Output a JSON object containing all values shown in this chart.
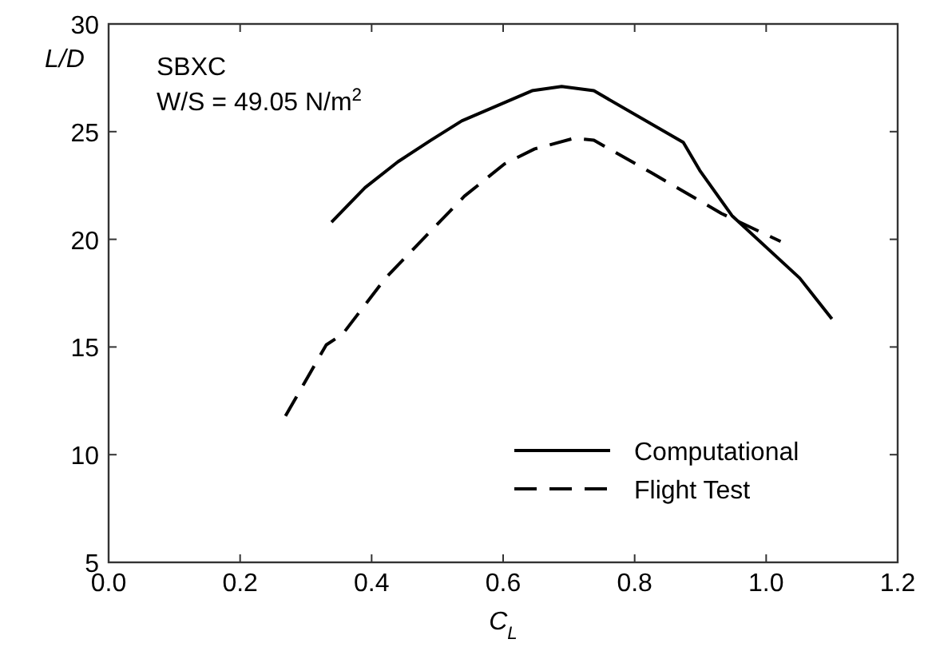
{
  "chart_data": {
    "type": "line",
    "xlabel": "C$_{L}$",
    "ylabel": "L/D",
    "xlim": [
      0,
      1.2
    ],
    "ylim": [
      5,
      30
    ],
    "xticks": [
      {
        "value": 0,
        "label": "0.0"
      },
      0.2,
      0.4,
      0.6,
      0.8,
      {
        "value": 1,
        "label": "1.0"
      },
      1.2
    ],
    "yticks": [
      5,
      10,
      15,
      20,
      25,
      30
    ],
    "grid": false,
    "legend": "bottom right",
    "annotations": [
      "SBXC",
      "W/S = 49.05 N/m$^{2}$"
    ],
    "series": [
      {
        "name": "Computational",
        "color": "#000000",
        "line_style": "solid",
        "x": [
          0.339,
          0.39,
          0.44,
          0.49,
          0.537,
          0.644,
          0.689,
          0.738,
          0.874,
          0.899,
          0.948,
          1.051,
          1.1
        ],
        "values": [
          20.8,
          22.4,
          23.6,
          24.6,
          25.5,
          26.9,
          27.1,
          26.9,
          24.5,
          23.2,
          21.1,
          18.2,
          16.3
        ]
      },
      {
        "name": "Flight Test",
        "color": "#000000",
        "line_style": "dashed",
        "x": [
          0.269,
          0.331,
          0.356,
          0.421,
          0.541,
          0.602,
          0.648,
          0.709,
          0.738,
          0.825,
          0.932,
          1.022
        ],
        "values": [
          11.8,
          15.1,
          15.6,
          18.2,
          22.0,
          23.5,
          24.2,
          24.7,
          24.6,
          23.1,
          21.2,
          19.9
        ]
      }
    ]
  }
}
